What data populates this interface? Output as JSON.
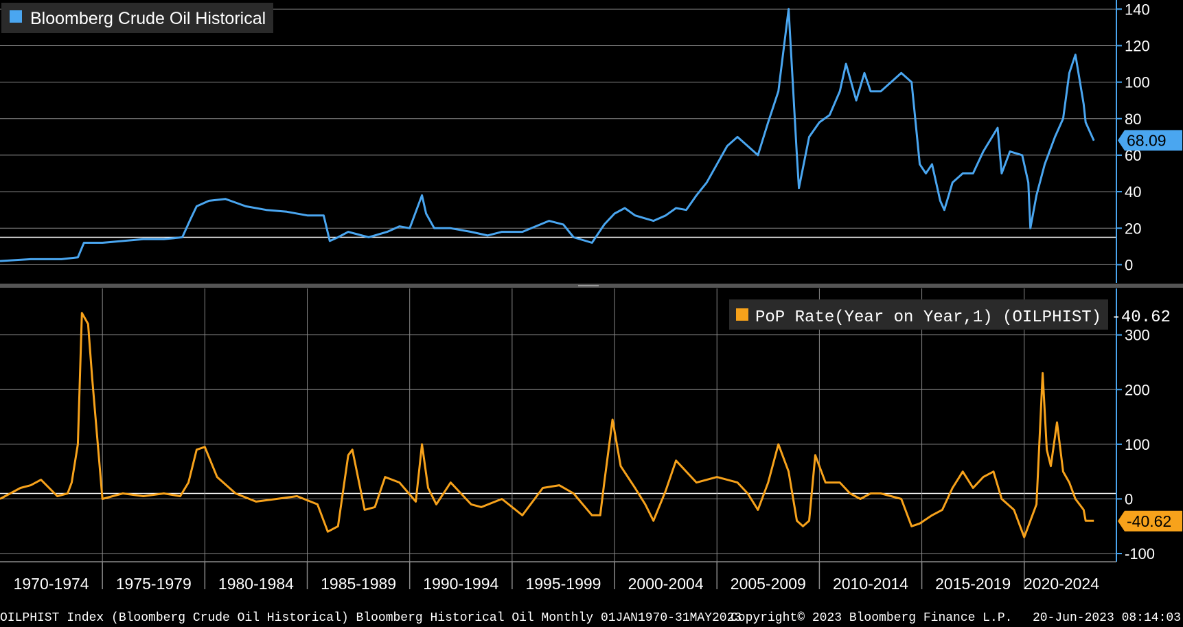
{
  "colors": {
    "background": "#000000",
    "price_line": "#4aa6f0",
    "yoy_line": "#f7a21b",
    "axis": "#4aa6f0",
    "grid": "#8a8a8a",
    "text": "#ffffff"
  },
  "footer": {
    "left": "OILPHIST Index (Bloomberg Crude Oil Historical) Bloomberg Historical Oil  Monthly 01JAN1970-31MAY2023",
    "copyright": "Copyright© 2023 Bloomberg Finance L.P.",
    "timestamp": "20-Jun-2023 08:14:03"
  },
  "chart_data": [
    {
      "type": "line",
      "panel": "top",
      "title": "Bloomberg Crude Oil Historical",
      "legend": "Bloomberg Crude Oil Historical",
      "legend_position": "top-left",
      "ylim": [
        -10,
        145
      ],
      "yticks": [
        "0",
        "20",
        "40",
        "60",
        "80",
        "100",
        "120",
        "140"
      ],
      "last_value_label": "68.09",
      "reference_line": 15,
      "x": [
        1970.0,
        1971.5,
        1973.0,
        1973.8,
        1974.1,
        1975.0,
        1976.0,
        1977.0,
        1978.0,
        1978.9,
        1979.3,
        1979.6,
        1980.2,
        1981.0,
        1981.5,
        1982.0,
        1983.0,
        1984.0,
        1985.0,
        1985.8,
        1986.1,
        1986.5,
        1987.0,
        1988.0,
        1988.9,
        1989.5,
        1990.0,
        1990.6,
        1990.8,
        1991.2,
        1992.0,
        1993.0,
        1993.8,
        1994.5,
        1995.5,
        1996.8,
        1997.5,
        1998.0,
        1998.9,
        1999.5,
        2000.0,
        2000.5,
        2001.0,
        2001.9,
        2002.5,
        2003.0,
        2003.5,
        2004.0,
        2004.5,
        2005.0,
        2005.5,
        2006.0,
        2006.5,
        2007.0,
        2007.5,
        2008.0,
        2008.5,
        2008.9,
        2009.0,
        2009.5,
        2010.0,
        2010.5,
        2011.0,
        2011.3,
        2011.8,
        2012.2,
        2012.5,
        2013.0,
        2013.5,
        2014.0,
        2014.5,
        2014.9,
        2015.2,
        2015.5,
        2015.9,
        2016.1,
        2016.5,
        2017.0,
        2017.5,
        2018.0,
        2018.7,
        2018.9,
        2019.3,
        2019.9,
        2020.2,
        2020.3,
        2020.6,
        2021.0,
        2021.5,
        2021.9,
        2022.2,
        2022.5,
        2022.9,
        2023.0,
        2023.4
      ],
      "series": [
        {
          "name": "Bloomberg Crude Oil Historical",
          "values": [
            2,
            3,
            3,
            4,
            12,
            12,
            13,
            14,
            14,
            15,
            25,
            32,
            35,
            36,
            34,
            32,
            30,
            29,
            27,
            27,
            13,
            15,
            18,
            15,
            18,
            21,
            20,
            38,
            28,
            20,
            20,
            18,
            16,
            18,
            18,
            24,
            22,
            15,
            12,
            22,
            28,
            31,
            27,
            24,
            27,
            31,
            30,
            38,
            45,
            55,
            65,
            70,
            65,
            60,
            78,
            95,
            140,
            60,
            42,
            70,
            78,
            82,
            95,
            110,
            90,
            105,
            95,
            95,
            100,
            105,
            100,
            55,
            50,
            55,
            35,
            30,
            45,
            50,
            50,
            62,
            75,
            50,
            62,
            60,
            45,
            20,
            38,
            55,
            70,
            80,
            105,
            115,
            88,
            78,
            68
          ]
        }
      ]
    },
    {
      "type": "line",
      "panel": "bottom",
      "title": "PoP Rate(Year on Year,1) (OILPHIST) -40.62",
      "legend": "PoP Rate(Year on Year,1) (OILPHIST) -40.62",
      "legend_position": "top-right",
      "ylim": [
        -115,
        385
      ],
      "yticks": [
        "300",
        "200",
        "100",
        "0",
        "-100"
      ],
      "last_value_label": "-40.62",
      "reference_line": 10,
      "x": [
        1970.0,
        1971.0,
        1971.5,
        1972.0,
        1972.8,
        1973.3,
        1973.5,
        1973.8,
        1974.0,
        1974.3,
        1974.5,
        1975.0,
        1976.0,
        1977.0,
        1978.0,
        1978.8,
        1979.2,
        1979.6,
        1980.0,
        1980.6,
        1981.5,
        1982.5,
        1983.5,
        1984.5,
        1985.5,
        1986.0,
        1986.5,
        1987.0,
        1987.2,
        1987.8,
        1988.3,
        1988.8,
        1989.5,
        1990.3,
        1990.6,
        1990.9,
        1991.3,
        1992.0,
        1993.0,
        1993.5,
        1994.5,
        1995.5,
        1996.5,
        1997.3,
        1998.0,
        1998.9,
        1999.3,
        1999.5,
        1999.9,
        2000.3,
        2001.0,
        2001.5,
        2001.9,
        2002.5,
        2003.0,
        2004.0,
        2005.0,
        2006.0,
        2006.5,
        2007.0,
        2007.5,
        2008.0,
        2008.5,
        2008.9,
        2009.2,
        2009.5,
        2009.8,
        2010.3,
        2011.0,
        2011.5,
        2012.0,
        2012.5,
        2013.0,
        2014.0,
        2014.5,
        2014.9,
        2015.5,
        2016.0,
        2016.5,
        2017.0,
        2017.5,
        2018.0,
        2018.5,
        2018.9,
        2019.5,
        2020.0,
        2020.3,
        2020.6,
        2020.9,
        2021.1,
        2021.3,
        2021.6,
        2021.9,
        2022.2,
        2022.5,
        2022.9,
        2023.0,
        2023.4
      ],
      "series": [
        {
          "name": "PoP Rate(Year on Year,1)",
          "values": [
            0,
            20,
            25,
            35,
            5,
            10,
            30,
            100,
            340,
            320,
            220,
            0,
            10,
            5,
            10,
            5,
            30,
            90,
            95,
            40,
            10,
            -5,
            0,
            5,
            -10,
            -60,
            -50,
            80,
            90,
            -20,
            -15,
            40,
            30,
            -5,
            100,
            20,
            -10,
            30,
            -10,
            -15,
            0,
            -30,
            20,
            25,
            10,
            -30,
            -30,
            30,
            145,
            60,
            20,
            -10,
            -40,
            15,
            70,
            30,
            40,
            30,
            10,
            -20,
            30,
            100,
            50,
            -40,
            -50,
            -40,
            80,
            30,
            30,
            10,
            0,
            10,
            10,
            0,
            -50,
            -45,
            -30,
            -20,
            20,
            50,
            20,
            40,
            50,
            0,
            -20,
            -70,
            -40,
            -10,
            230,
            90,
            60,
            140,
            50,
            30,
            0,
            -20,
            -40,
            -40
          ]
        }
      ]
    },
    {
      "type": "line",
      "panel": "x-axis",
      "x_tick_labels": [
        "1970-1974",
        "1975-1979",
        "1980-1984",
        "1985-1989",
        "1990-1994",
        "1995-1999",
        "2000-2004",
        "2005-2009",
        "2010-2014",
        "2015-2019",
        "2020-2024"
      ],
      "xlim": [
        1970,
        2024.5
      ]
    }
  ]
}
